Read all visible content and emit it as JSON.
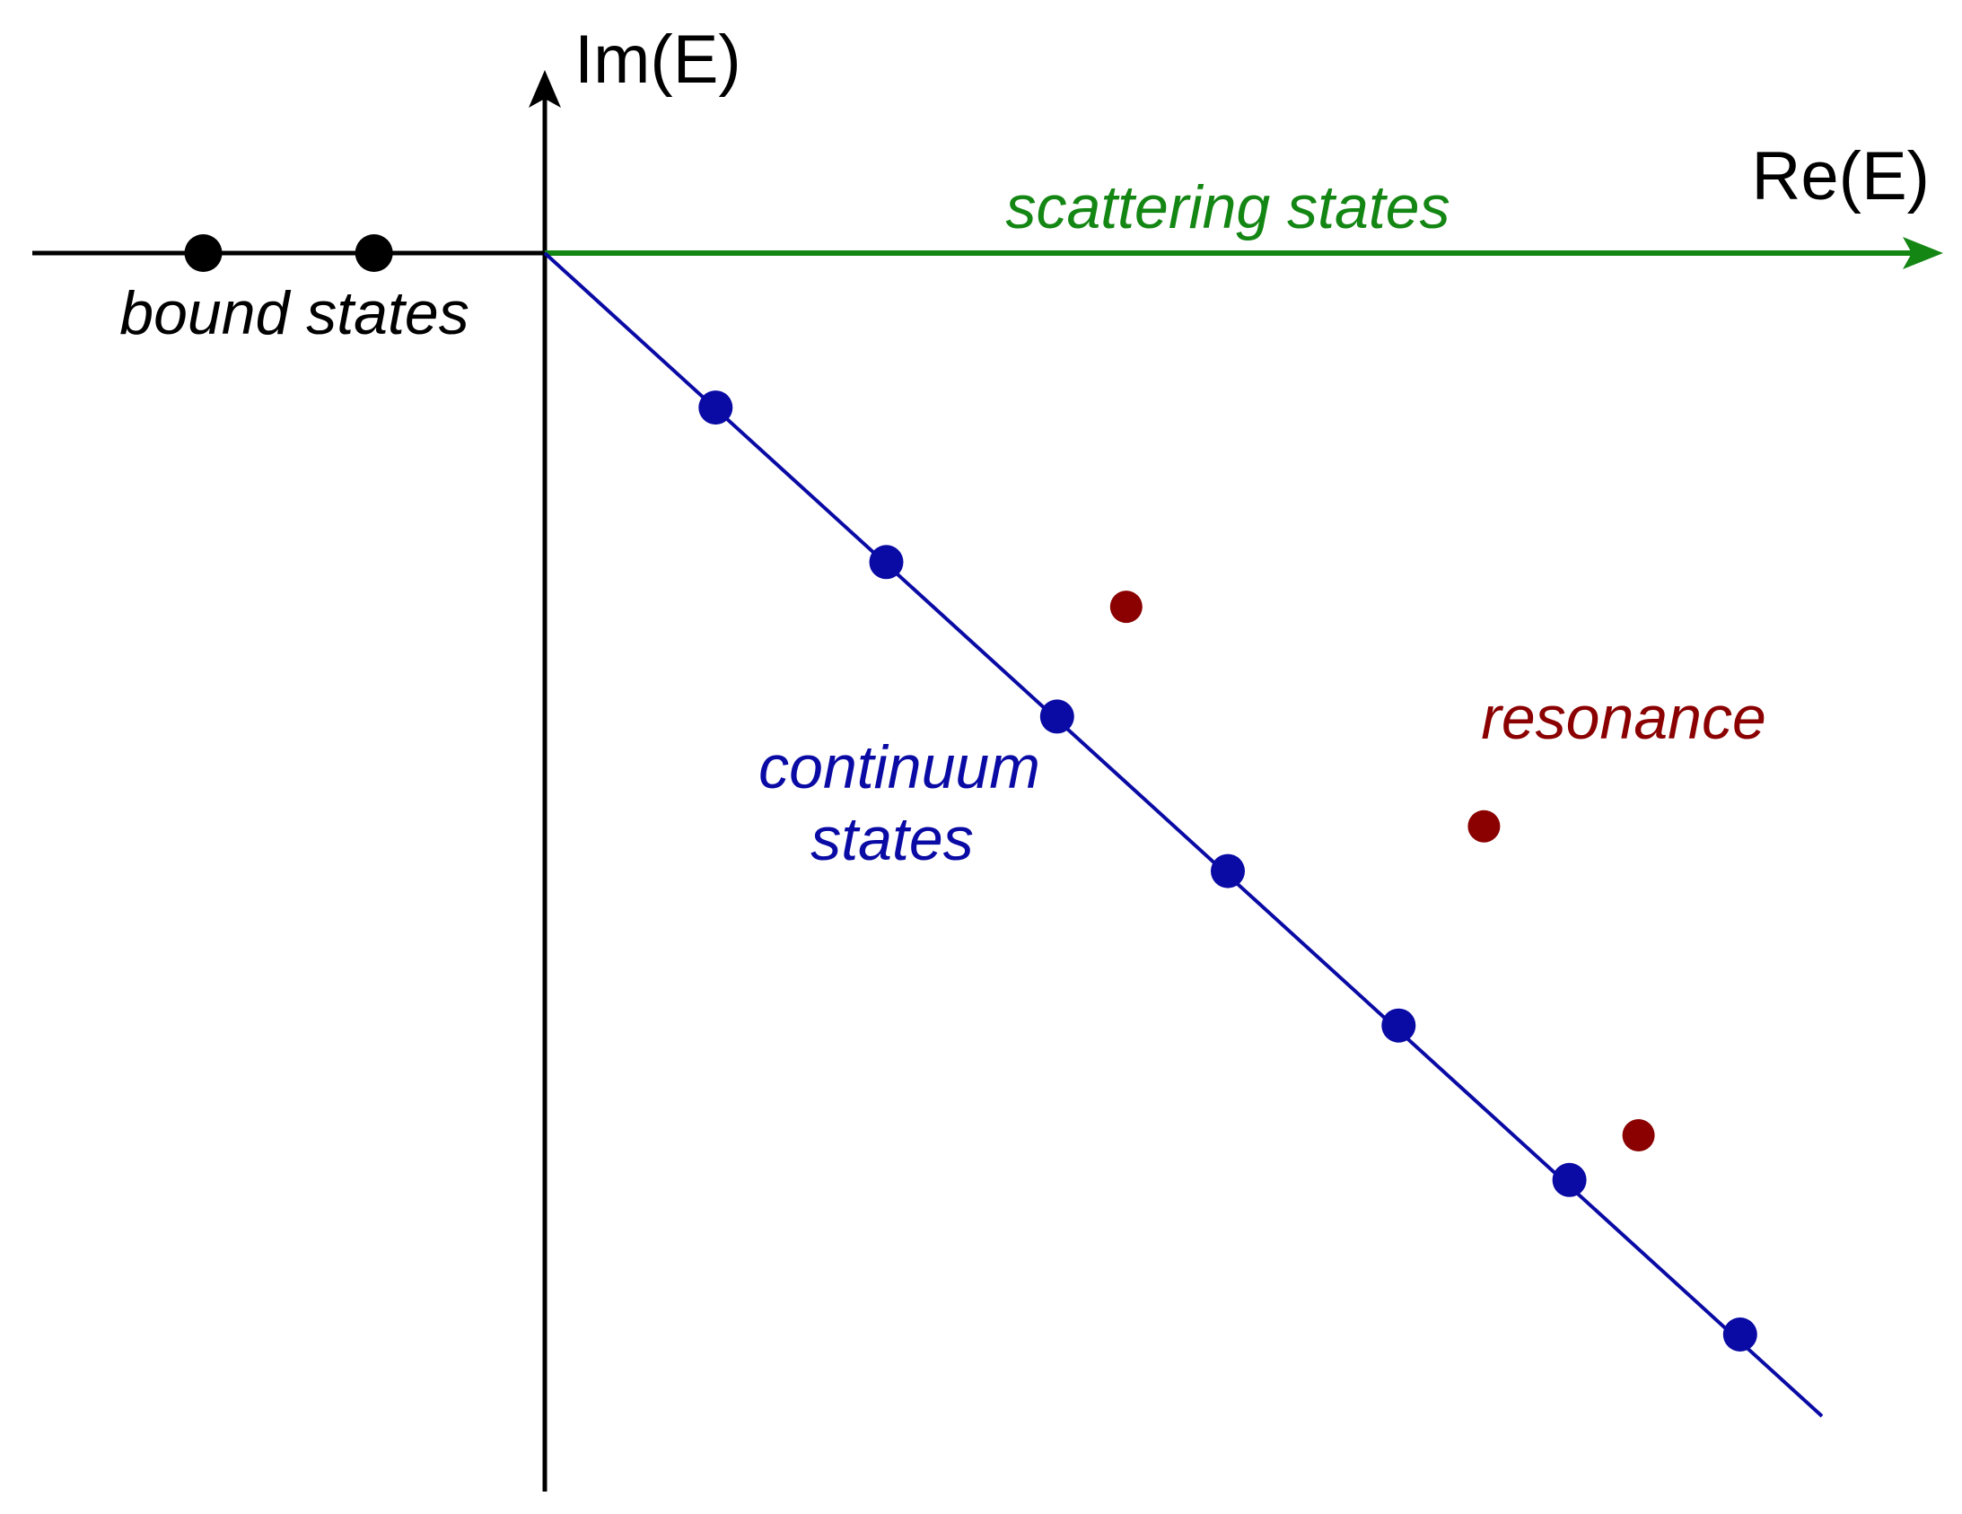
{
  "axes": {
    "x_label": "Re(E)",
    "y_label": "Im(E)"
  },
  "labels": {
    "scattering": "scattering states",
    "bound": "bound states",
    "continuum_line1": "continuum",
    "continuum_line2": "states",
    "resonance": "resonance"
  },
  "points": {
    "bound_states": [
      {
        "re": -0.84,
        "im": 0
      },
      {
        "re": -0.42,
        "im": 0
      }
    ],
    "continuum_states": [
      {
        "re": 0.42,
        "im": -0.38
      },
      {
        "re": 0.84,
        "im": -0.76
      },
      {
        "re": 1.26,
        "im": -1.14
      },
      {
        "re": 1.68,
        "im": -1.52
      },
      {
        "re": 2.1,
        "im": -1.9
      },
      {
        "re": 2.52,
        "im": -2.28
      },
      {
        "re": 2.94,
        "im": -2.66
      }
    ],
    "resonances": [
      {
        "re": 1.43,
        "im": -0.87
      },
      {
        "re": 2.31,
        "im": -1.41
      },
      {
        "re": 2.69,
        "im": -2.17
      }
    ]
  },
  "colors": {
    "axis": "#000000",
    "bound": "#000000",
    "scattering": "#138613",
    "continuum": "#0a0aa5",
    "resonance": "#8b0000"
  }
}
